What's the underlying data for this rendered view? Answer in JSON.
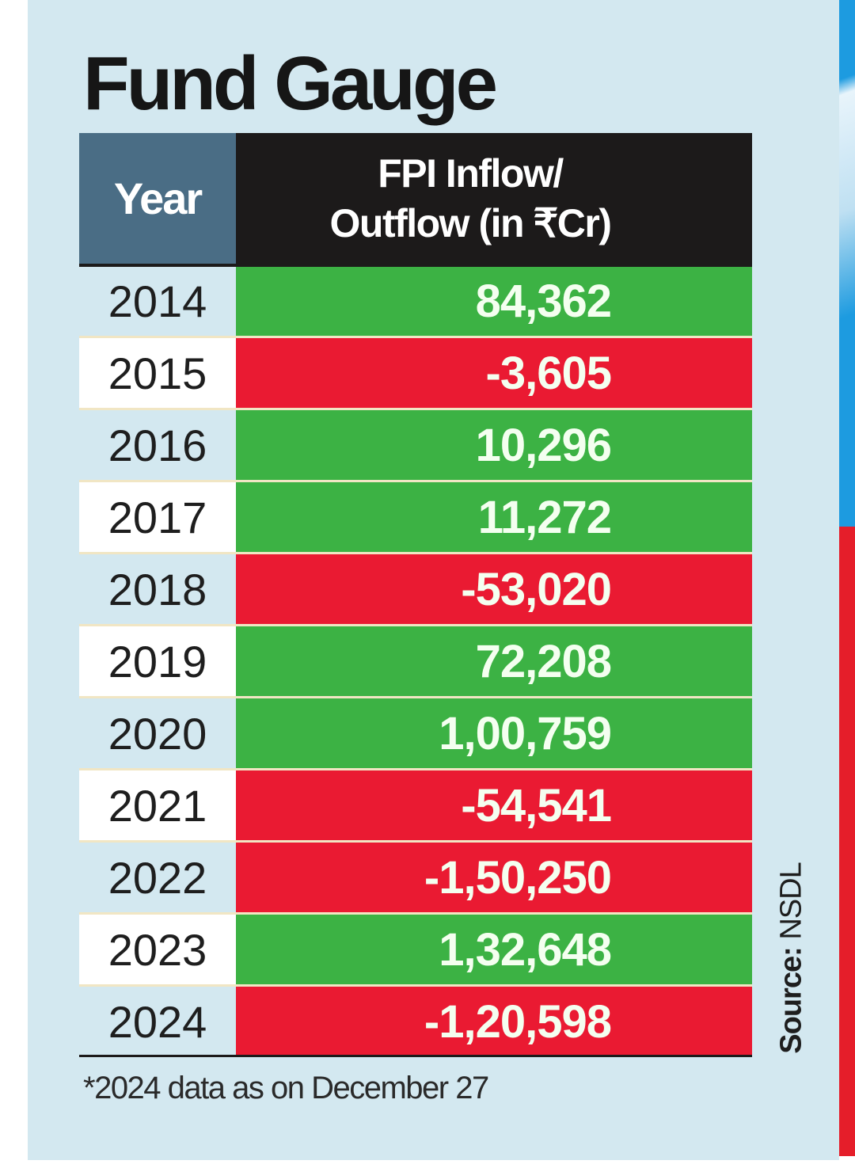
{
  "title": "Fund Gauge",
  "chart_data": {
    "type": "table",
    "columns": [
      "Year",
      "FPI Inflow/ Outflow (in ₹Cr)"
    ],
    "header": {
      "year": "Year",
      "value_line1": "FPI Inflow/",
      "value_line2": "Outflow (in ₹Cr)"
    },
    "rows": [
      {
        "year": "2014",
        "value": "84,362",
        "sign": "positive"
      },
      {
        "year": "2015",
        "value": "-3,605",
        "sign": "negative"
      },
      {
        "year": "2016",
        "value": "10,296",
        "sign": "positive"
      },
      {
        "year": "2017",
        "value": "11,272",
        "sign": "positive"
      },
      {
        "year": "2018",
        "value": "-53,020",
        "sign": "negative"
      },
      {
        "year": "2019",
        "value": "72,208",
        "sign": "positive"
      },
      {
        "year": "2020",
        "value": "1,00,759",
        "sign": "positive"
      },
      {
        "year": "2021",
        "value": "-54,541",
        "sign": "negative"
      },
      {
        "year": "2022",
        "value": "-1,50,250",
        "sign": "negative"
      },
      {
        "year": "2023",
        "value": "1,32,648",
        "sign": "positive"
      },
      {
        "year": "2024",
        "value": "-1,20,598",
        "sign": "negative"
      }
    ],
    "colors": {
      "positive": "#3cb244",
      "negative": "#ea1a32",
      "year_header": "#4a6d85",
      "value_header": "#1c1a1a"
    }
  },
  "source": {
    "label": "Source:",
    "value": "NSDL"
  },
  "footnote": "*2024 data as on December 27"
}
